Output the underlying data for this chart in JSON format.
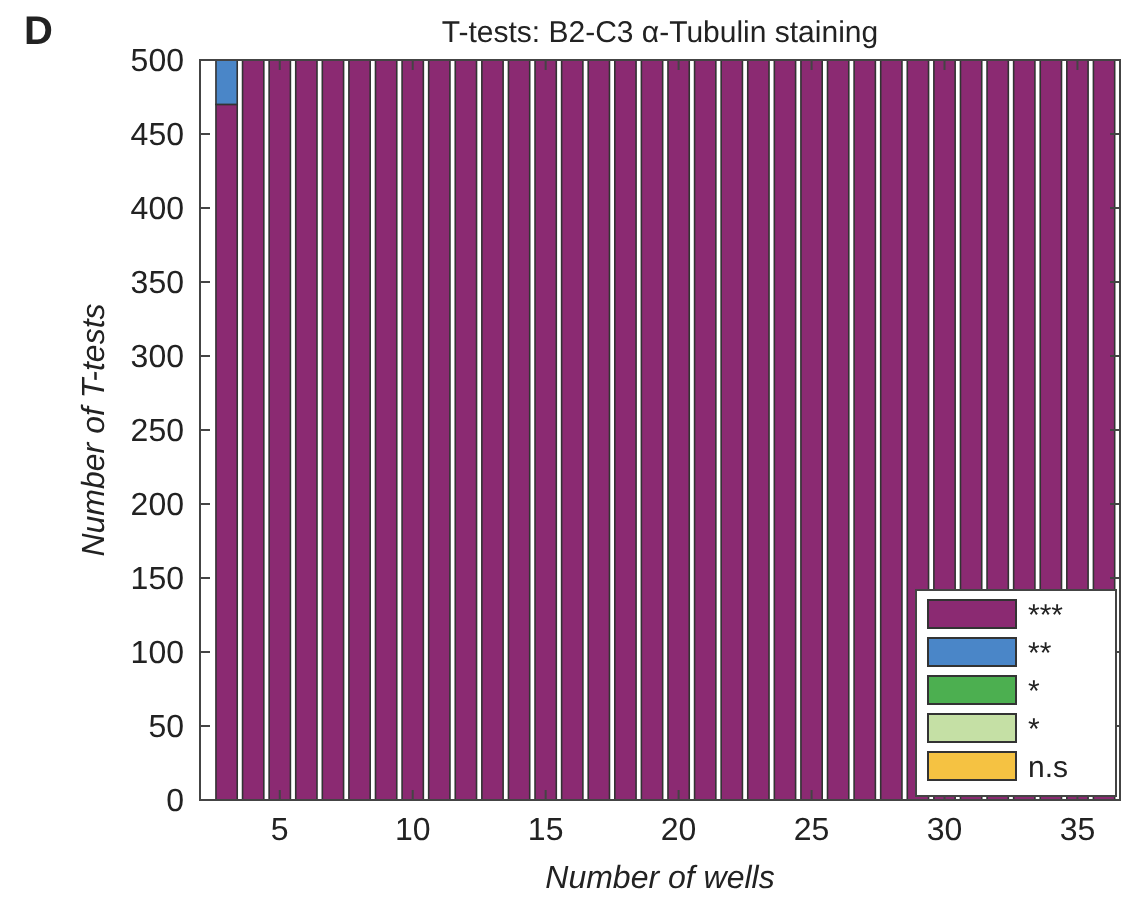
{
  "chart_data": {
    "type": "bar",
    "stacked": true,
    "title": "T-tests: B2-C3 α-Tubulin staining",
    "xlabel": "Number of wells",
    "ylabel": "Number of T-tests",
    "annotations": [
      "D"
    ],
    "x": [
      3,
      4,
      5,
      6,
      7,
      8,
      9,
      10,
      11,
      12,
      13,
      14,
      15,
      16,
      17,
      18,
      19,
      20,
      21,
      22,
      23,
      24,
      25,
      26,
      27,
      28,
      29,
      30,
      31,
      32,
      33,
      34,
      35,
      36
    ],
    "series": [
      {
        "name": "***",
        "color": "#8b2a72",
        "values": [
          470,
          500,
          500,
          500,
          500,
          500,
          500,
          500,
          500,
          500,
          500,
          500,
          500,
          500,
          500,
          500,
          500,
          500,
          500,
          500,
          500,
          500,
          500,
          500,
          500,
          500,
          500,
          500,
          500,
          500,
          500,
          500,
          500,
          500
        ]
      },
      {
        "name": "**",
        "color": "#4a86c8",
        "values": [
          30,
          0,
          0,
          0,
          0,
          0,
          0,
          0,
          0,
          0,
          0,
          0,
          0,
          0,
          0,
          0,
          0,
          0,
          0,
          0,
          0,
          0,
          0,
          0,
          0,
          0,
          0,
          0,
          0,
          0,
          0,
          0,
          0,
          0
        ]
      },
      {
        "name": "*",
        "color": "#4caf50",
        "values": [
          0,
          0,
          0,
          0,
          0,
          0,
          0,
          0,
          0,
          0,
          0,
          0,
          0,
          0,
          0,
          0,
          0,
          0,
          0,
          0,
          0,
          0,
          0,
          0,
          0,
          0,
          0,
          0,
          0,
          0,
          0,
          0,
          0,
          0
        ]
      },
      {
        "name": "*",
        "color": "#c5e0a5",
        "values": [
          0,
          0,
          0,
          0,
          0,
          0,
          0,
          0,
          0,
          0,
          0,
          0,
          0,
          0,
          0,
          0,
          0,
          0,
          0,
          0,
          0,
          0,
          0,
          0,
          0,
          0,
          0,
          0,
          0,
          0,
          0,
          0,
          0,
          0
        ]
      },
      {
        "name": "n.s",
        "color": "#f5c242",
        "values": [
          0,
          0,
          0,
          0,
          0,
          0,
          0,
          0,
          0,
          0,
          0,
          0,
          0,
          0,
          0,
          0,
          0,
          0,
          0,
          0,
          0,
          0,
          0,
          0,
          0,
          0,
          0,
          0,
          0,
          0,
          0,
          0,
          0,
          0
        ]
      }
    ],
    "xlim": [
      2,
      36.6
    ],
    "xticks": [
      5,
      10,
      15,
      20,
      25,
      30,
      35
    ],
    "ylim": [
      0,
      500
    ],
    "yticks": [
      0,
      50,
      100,
      150,
      200,
      250,
      300,
      350,
      400,
      450,
      500
    ],
    "grid": false,
    "legend": "bottom right"
  }
}
